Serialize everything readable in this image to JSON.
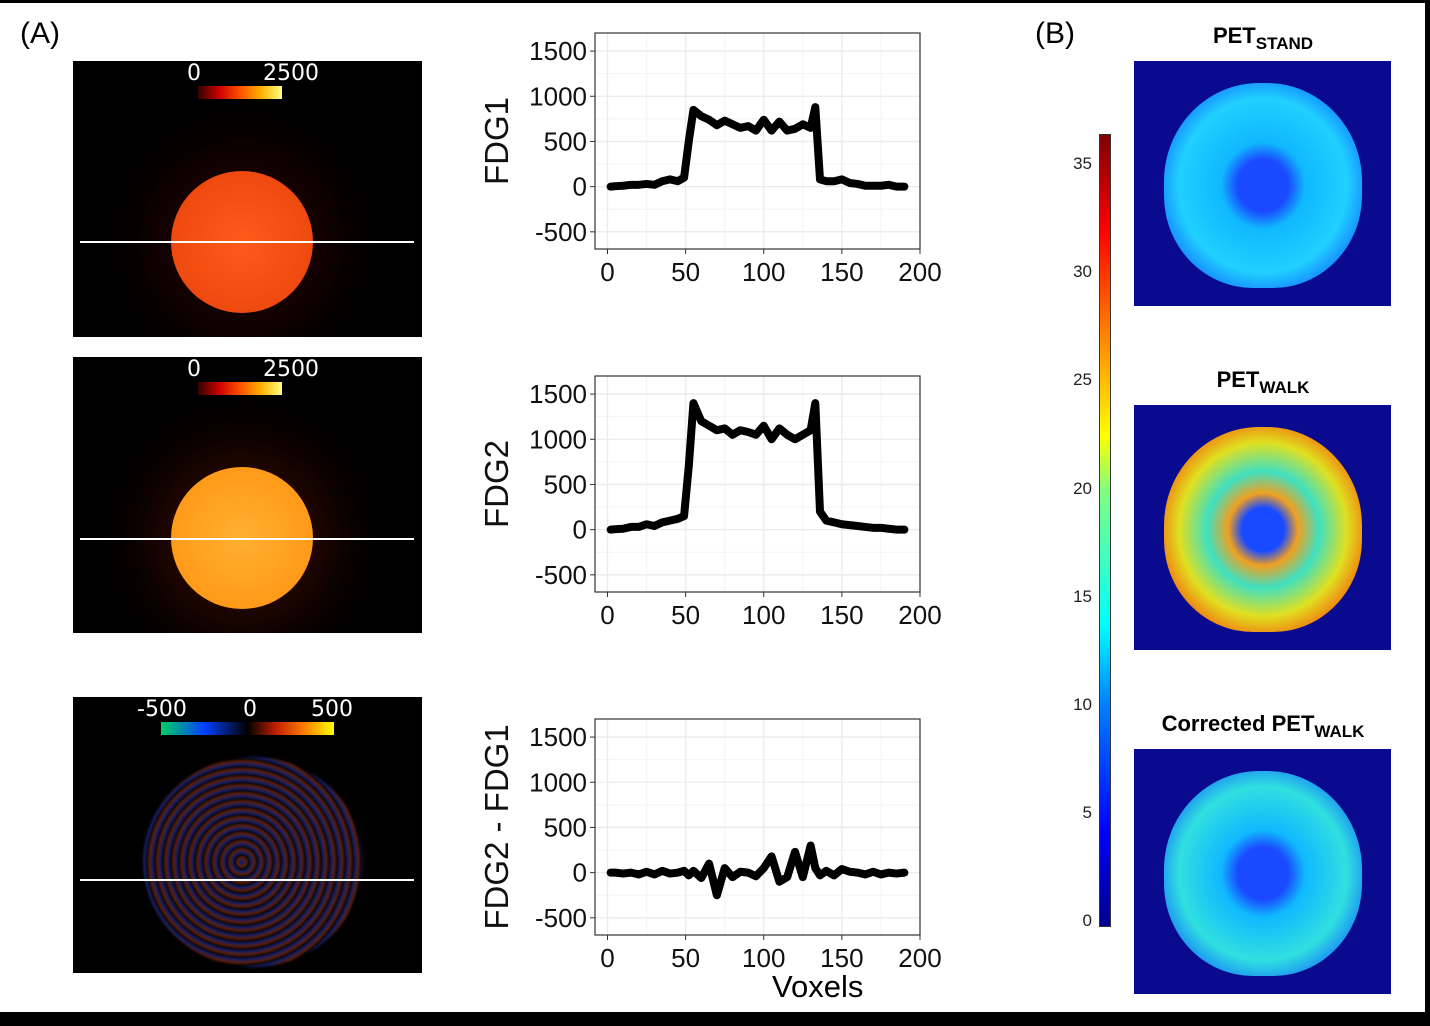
{
  "figure": {
    "panel_a_label": "(A)",
    "panel_b_label": "(B)",
    "phantoms": [
      {
        "cbar_min": "0",
        "cbar_max": "2500"
      },
      {
        "cbar_min": "0",
        "cbar_max": "2500"
      },
      {
        "cbar_min": "-500",
        "cbar_mid": "0",
        "cbar_max": "500"
      }
    ],
    "brains": [
      {
        "title_prefix": "PET",
        "title_sub": "STAND"
      },
      {
        "title_prefix": "PET",
        "title_sub": "WALK"
      },
      {
        "title_prefix": "Corrected PET",
        "title_sub": "WALK"
      }
    ],
    "colorbar": {
      "ticks": [
        "0",
        "5",
        "10",
        "15",
        "20",
        "25",
        "30",
        "35"
      ],
      "range": [
        0,
        36.4
      ],
      "colormap": "jet"
    },
    "colors": {
      "line": "#000000",
      "grid": "#ebebeb",
      "phantom_hot": "#ff6a1a",
      "brain_bg": "#0a0a8e"
    }
  },
  "chart_data": [
    {
      "type": "line",
      "ylabel": "FDG1",
      "xlabel": "",
      "xlim": [
        -8,
        200
      ],
      "ylim": [
        -690,
        1700
      ],
      "xticks": [
        0,
        50,
        100,
        150,
        200
      ],
      "yticks": [
        -500,
        0,
        500,
        1000,
        1500
      ],
      "grid": true,
      "x": [
        2,
        5,
        10,
        15,
        20,
        25,
        30,
        35,
        40,
        45,
        49,
        52,
        55,
        60,
        65,
        70,
        75,
        80,
        85,
        90,
        95,
        100,
        105,
        110,
        115,
        120,
        125,
        130,
        133,
        136,
        140,
        145,
        150,
        155,
        160,
        165,
        170,
        175,
        180,
        185,
        190
      ],
      "values": [
        0,
        5,
        10,
        20,
        20,
        30,
        20,
        60,
        80,
        60,
        100,
        500,
        850,
        780,
        740,
        680,
        730,
        690,
        650,
        670,
        620,
        740,
        620,
        720,
        620,
        640,
        690,
        650,
        880,
        80,
        60,
        60,
        80,
        40,
        30,
        10,
        10,
        10,
        20,
        0,
        0
      ]
    },
    {
      "type": "line",
      "ylabel": "FDG2",
      "xlabel": "",
      "xlim": [
        -8,
        200
      ],
      "ylim": [
        -690,
        1700
      ],
      "xticks": [
        0,
        50,
        100,
        150,
        200
      ],
      "yticks": [
        -500,
        0,
        500,
        1000,
        1500
      ],
      "grid": true,
      "x": [
        2,
        5,
        10,
        15,
        20,
        25,
        30,
        35,
        40,
        45,
        49,
        52,
        55,
        60,
        65,
        70,
        75,
        80,
        85,
        90,
        95,
        100,
        105,
        110,
        115,
        120,
        125,
        130,
        133,
        136,
        140,
        145,
        150,
        155,
        160,
        165,
        170,
        175,
        180,
        185,
        190
      ],
      "values": [
        0,
        5,
        10,
        30,
        30,
        60,
        40,
        80,
        100,
        120,
        150,
        700,
        1400,
        1200,
        1150,
        1100,
        1120,
        1050,
        1100,
        1080,
        1050,
        1150,
        1000,
        1120,
        1050,
        1000,
        1050,
        1100,
        1400,
        200,
        100,
        80,
        60,
        50,
        40,
        30,
        20,
        20,
        10,
        0,
        0
      ]
    },
    {
      "type": "line",
      "ylabel": "FDG2 - FDG1",
      "xlabel": "Voxels",
      "xlim": [
        -8,
        200
      ],
      "ylim": [
        -690,
        1700
      ],
      "xticks": [
        0,
        50,
        100,
        150,
        200
      ],
      "yticks": [
        -500,
        0,
        500,
        1000,
        1500
      ],
      "grid": true,
      "x": [
        2,
        5,
        10,
        15,
        20,
        25,
        30,
        35,
        40,
        45,
        49,
        52,
        55,
        60,
        65,
        70,
        75,
        80,
        85,
        90,
        95,
        100,
        105,
        110,
        115,
        120,
        125,
        130,
        133,
        136,
        140,
        145,
        150,
        155,
        160,
        165,
        170,
        175,
        180,
        185,
        190
      ],
      "values": [
        0,
        0,
        -10,
        0,
        -20,
        10,
        -20,
        20,
        -10,
        0,
        20,
        -30,
        20,
        -60,
        100,
        -250,
        50,
        -50,
        10,
        0,
        -40,
        50,
        180,
        -100,
        -50,
        230,
        -50,
        300,
        50,
        -30,
        20,
        -30,
        40,
        10,
        0,
        -20,
        10,
        -20,
        0,
        -10,
        0
      ]
    }
  ]
}
